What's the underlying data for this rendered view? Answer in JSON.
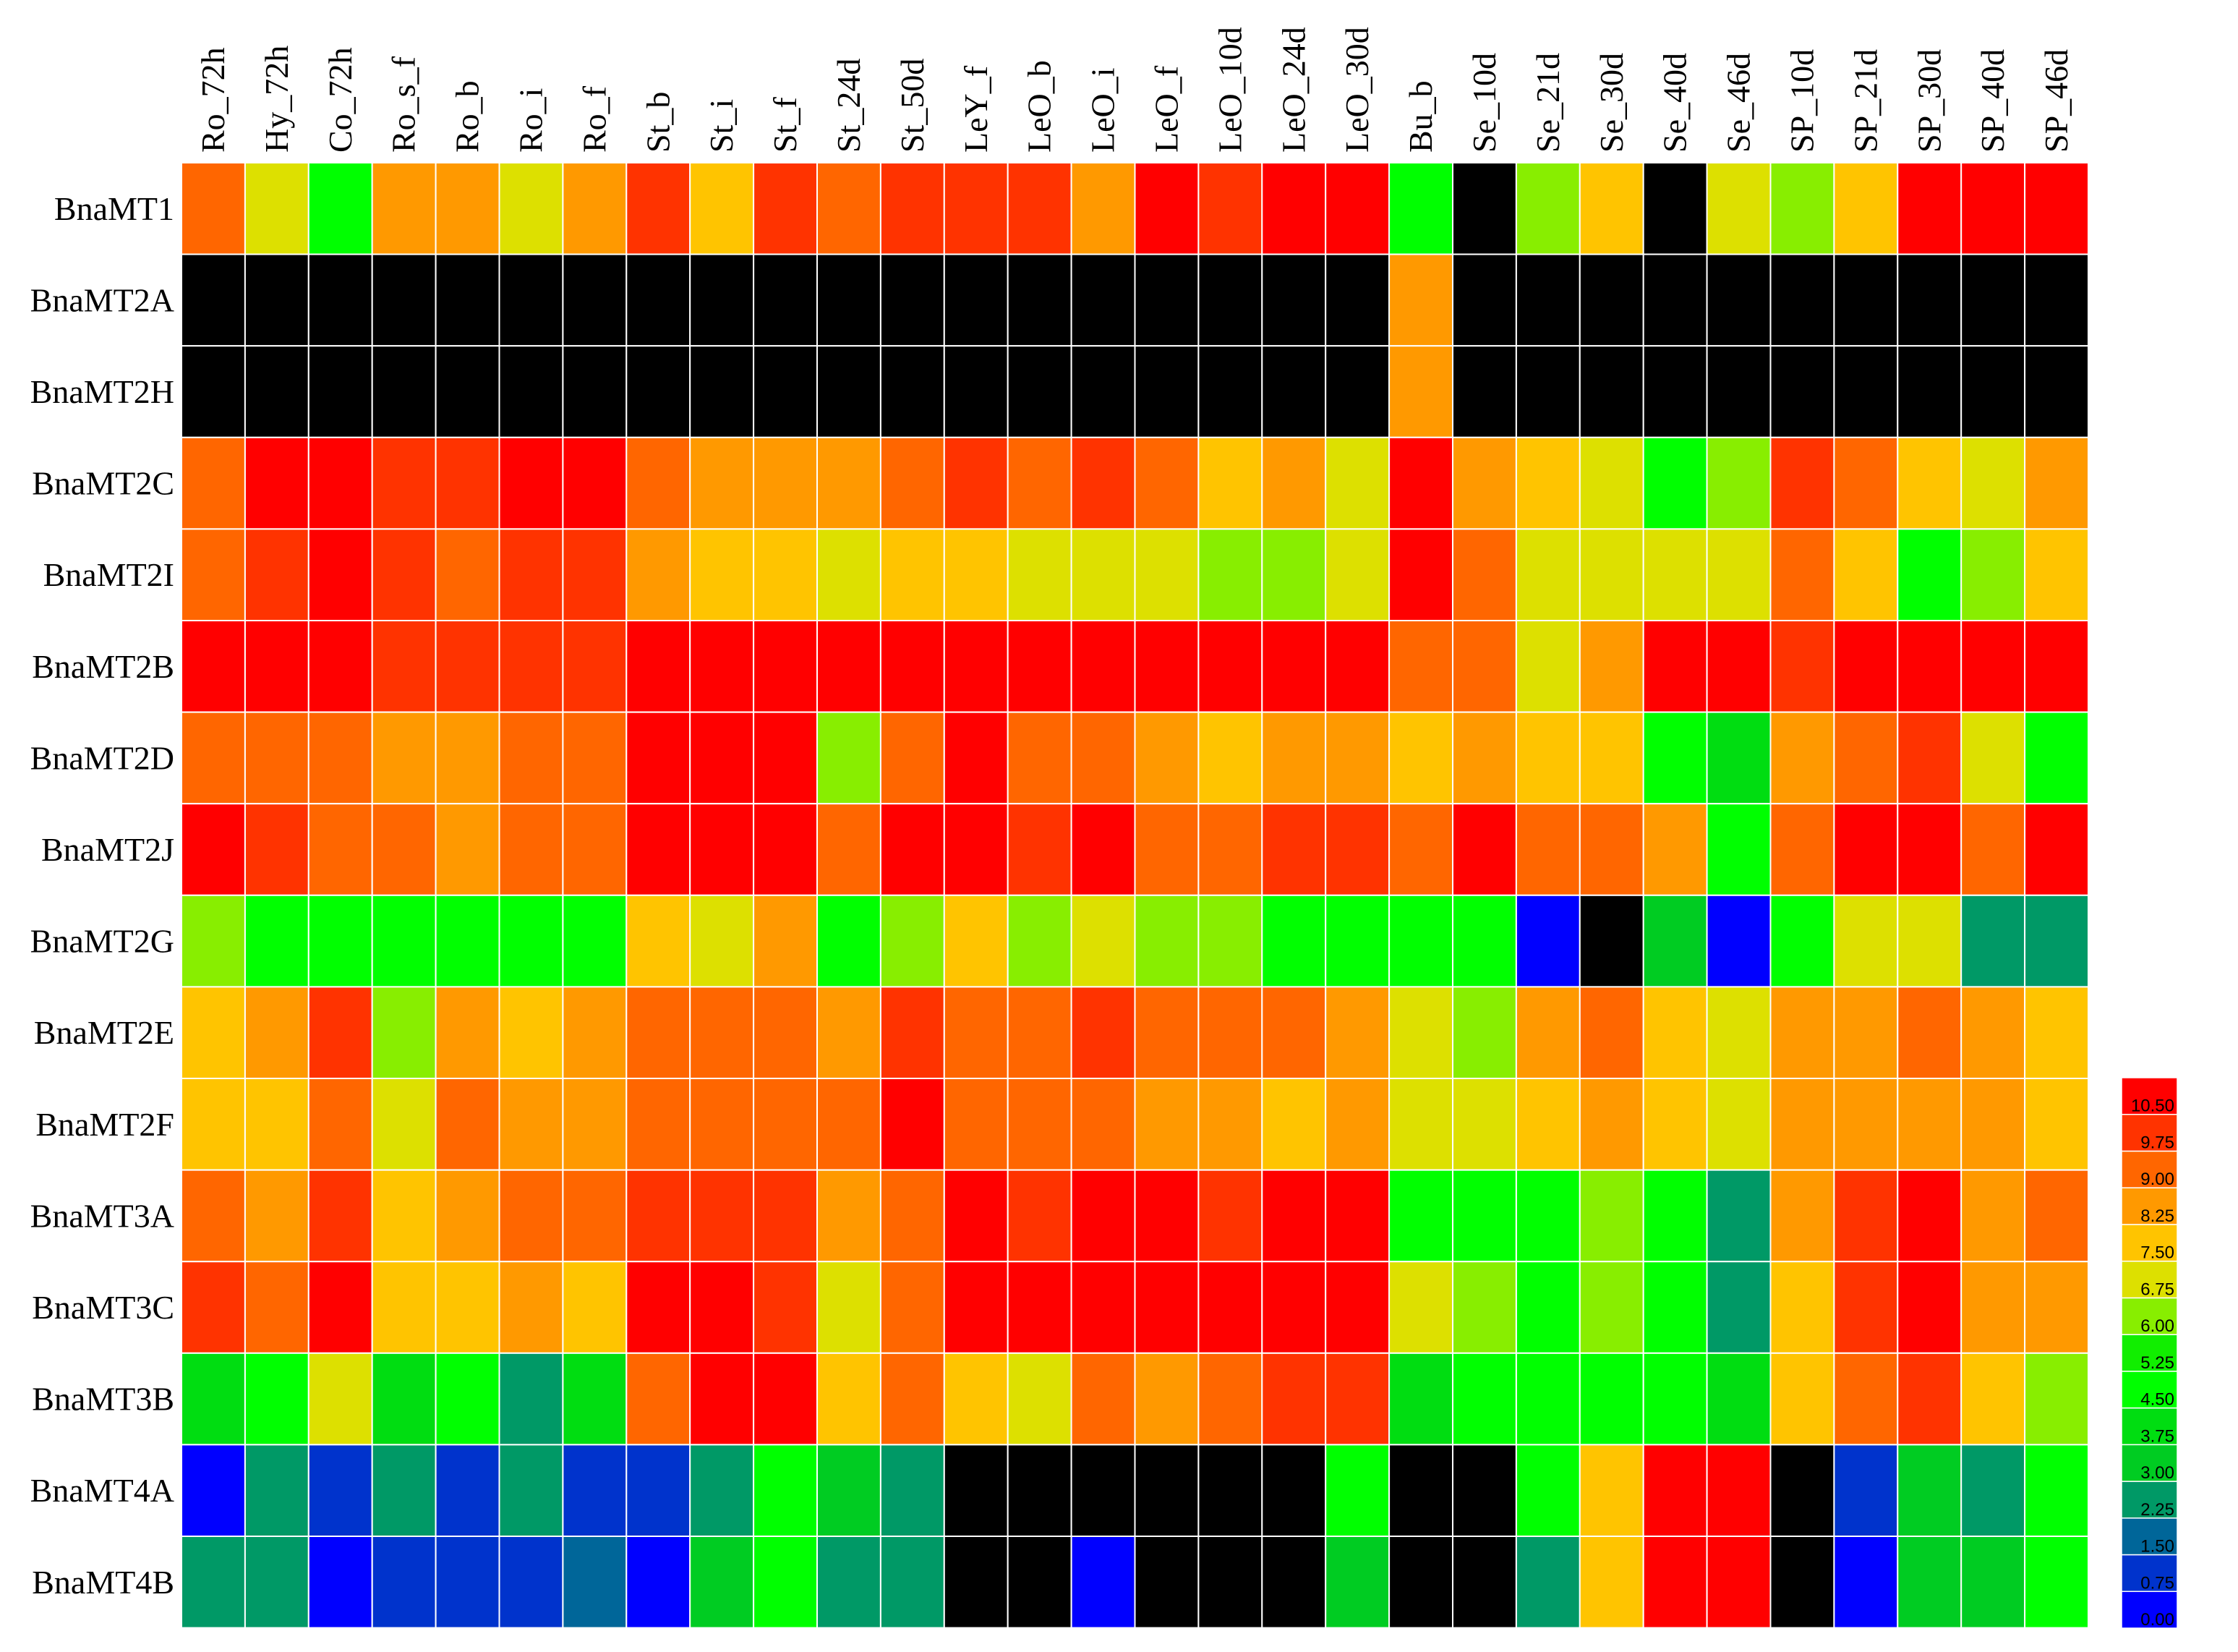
{
  "chart_data": {
    "type": "heatmap",
    "title": "",
    "xlabel": "",
    "ylabel": "",
    "columns": [
      "Ro_72h",
      "Hy_72h",
      "Co_72h",
      "Ro_s_f",
      "Ro_b",
      "Ro_i",
      "Ro_f",
      "St_b",
      "St_i",
      "St_f",
      "St_24d",
      "St_50d",
      "LeY_f",
      "LeO_b",
      "LeO_i",
      "LeO_f",
      "LeO_10d",
      "LeO_24d",
      "LeO_30d",
      "Bu_b",
      "Se_10d",
      "Se_21d",
      "Se_30d",
      "Se_40d",
      "Se_46d",
      "SP_10d",
      "SP_21d",
      "SP_30d",
      "SP_40d",
      "SP_46d"
    ],
    "rows": [
      "BnaMT1",
      "BnaMT2A",
      "BnaMT2H",
      "BnaMT2C",
      "BnaMT2I",
      "BnaMT2B",
      "BnaMT2D",
      "BnaMT2J",
      "BnaMT2G",
      "BnaMT2E",
      "BnaMT2F",
      "BnaMT3A",
      "BnaMT3C",
      "BnaMT3B",
      "BnaMT4A",
      "BnaMT4B"
    ],
    "missing_color": "#000000",
    "values": [
      [
        9.3,
        7.2,
        4.9,
        8.6,
        8.6,
        7.1,
        8.6,
        9.8,
        7.8,
        9.8,
        9.3,
        9.8,
        9.8,
        9.8,
        8.6,
        10.7,
        9.8,
        10.7,
        10.7,
        4.7,
        null,
        6.4,
        7.8,
        null,
        7.1,
        6.4,
        7.8,
        10.7,
        10.7,
        10.7
      ],
      [
        null,
        null,
        null,
        null,
        null,
        null,
        null,
        null,
        null,
        null,
        null,
        null,
        null,
        null,
        null,
        null,
        null,
        null,
        null,
        8.6,
        null,
        null,
        null,
        null,
        null,
        null,
        null,
        null,
        null,
        null
      ],
      [
        null,
        null,
        null,
        null,
        null,
        null,
        null,
        null,
        null,
        null,
        null,
        null,
        null,
        null,
        null,
        null,
        null,
        null,
        null,
        8.6,
        null,
        null,
        null,
        null,
        null,
        null,
        null,
        null,
        null,
        null
      ],
      [
        9.3,
        10.7,
        10.7,
        9.8,
        9.8,
        10.7,
        10.7,
        9.3,
        8.6,
        8.6,
        8.6,
        9.3,
        9.8,
        9.3,
        9.8,
        9.3,
        7.8,
        8.6,
        7.1,
        10.7,
        8.6,
        7.8,
        7.1,
        4.9,
        6.4,
        9.8,
        9.3,
        7.8,
        7.1,
        8.6
      ],
      [
        9.3,
        9.8,
        10.7,
        9.8,
        9.3,
        9.8,
        9.8,
        8.6,
        7.8,
        7.8,
        7.1,
        7.8,
        7.8,
        7.1,
        7.1,
        7.1,
        6.4,
        6.4,
        7.1,
        10.7,
        9.3,
        7.1,
        7.1,
        7.1,
        7.1,
        9.3,
        7.8,
        4.7,
        6.4,
        7.8
      ],
      [
        10.7,
        10.7,
        10.7,
        9.8,
        9.8,
        9.8,
        9.8,
        10.7,
        10.7,
        10.7,
        10.7,
        10.7,
        10.7,
        10.7,
        10.7,
        10.7,
        10.7,
        10.7,
        10.7,
        9.3,
        9.3,
        7.1,
        8.6,
        10.7,
        10.7,
        9.8,
        10.7,
        10.7,
        10.7,
        10.7
      ],
      [
        9.3,
        9.3,
        9.3,
        8.6,
        8.6,
        9.3,
        9.3,
        10.7,
        10.7,
        10.7,
        6.4,
        9.3,
        10.7,
        9.3,
        9.3,
        8.6,
        7.8,
        8.6,
        8.6,
        7.8,
        8.6,
        7.8,
        7.8,
        4.9,
        4.2,
        8.6,
        9.3,
        9.8,
        7.1,
        4.7
      ],
      [
        10.7,
        9.8,
        9.3,
        9.3,
        8.6,
        9.3,
        9.3,
        10.7,
        10.7,
        10.7,
        9.3,
        10.7,
        10.7,
        9.8,
        10.7,
        9.3,
        9.3,
        9.8,
        9.8,
        9.3,
        10.7,
        9.3,
        9.3,
        8.6,
        4.7,
        9.3,
        10.7,
        10.7,
        9.3,
        10.7
      ],
      [
        6.4,
        4.9,
        4.9,
        4.7,
        4.7,
        4.7,
        4.7,
        7.8,
        7.1,
        8.6,
        4.7,
        6.4,
        7.8,
        6.4,
        7.1,
        6.4,
        6.4,
        4.9,
        4.9,
        4.7,
        4.7,
        0.4,
        null,
        3.6,
        0.4,
        4.9,
        7.1,
        7.1,
        2.6,
        2.6
      ],
      [
        7.8,
        8.6,
        9.8,
        6.4,
        8.6,
        7.8,
        8.6,
        9.3,
        9.3,
        9.3,
        8.6,
        9.8,
        9.3,
        9.3,
        9.8,
        9.3,
        9.3,
        9.3,
        8.6,
        7.1,
        6.4,
        8.6,
        9.3,
        7.8,
        7.1,
        8.6,
        8.6,
        9.3,
        8.6,
        7.8
      ],
      [
        7.8,
        7.8,
        9.3,
        7.1,
        9.3,
        8.6,
        8.6,
        9.3,
        9.3,
        9.3,
        9.3,
        10.7,
        9.3,
        9.3,
        9.3,
        8.6,
        8.6,
        7.8,
        8.6,
        7.1,
        7.1,
        7.8,
        8.6,
        7.8,
        7.1,
        8.6,
        8.6,
        8.6,
        8.6,
        7.8
      ],
      [
        9.3,
        8.6,
        9.8,
        7.8,
        8.6,
        9.3,
        9.3,
        9.8,
        9.8,
        9.8,
        8.6,
        9.3,
        10.7,
        9.8,
        10.7,
        10.7,
        9.8,
        10.7,
        10.7,
        4.7,
        4.7,
        4.7,
        6.4,
        4.7,
        2.6,
        8.6,
        9.8,
        10.7,
        8.6,
        9.3
      ],
      [
        9.8,
        9.3,
        10.7,
        7.8,
        7.8,
        8.6,
        7.8,
        10.7,
        10.7,
        9.8,
        7.1,
        9.3,
        10.7,
        10.7,
        10.7,
        10.7,
        10.7,
        10.7,
        10.7,
        7.1,
        6.4,
        4.7,
        6.4,
        4.7,
        2.6,
        7.8,
        9.8,
        10.7,
        8.6,
        8.6
      ],
      [
        4.2,
        4.7,
        7.1,
        4.2,
        4.7,
        2.6,
        4.2,
        9.3,
        10.7,
        10.7,
        7.8,
        9.3,
        7.8,
        7.1,
        9.3,
        8.6,
        9.3,
        9.8,
        9.8,
        4.2,
        4.9,
        4.9,
        4.9,
        4.9,
        4.2,
        7.8,
        9.3,
        9.8,
        7.8,
        6.4
      ],
      [
        0.4,
        2.6,
        1.1,
        2.6,
        1.1,
        2.6,
        1.1,
        1.1,
        2.6,
        4.7,
        3.6,
        2.6,
        null,
        null,
        null,
        null,
        null,
        null,
        4.7,
        null,
        null,
        4.7,
        7.8,
        10.7,
        10.7,
        null,
        1.1,
        3.6,
        2.6,
        4.9
      ],
      [
        2.6,
        2.6,
        0.4,
        1.1,
        1.1,
        1.1,
        1.9,
        0.4,
        3.6,
        4.7,
        2.6,
        2.6,
        null,
        null,
        0.4,
        null,
        null,
        null,
        3.6,
        null,
        null,
        2.6,
        7.8,
        10.7,
        10.7,
        null,
        0.4,
        3.6,
        3.6,
        4.7
      ]
    ],
    "color_scale": {
      "ticks": [
        "0.00",
        "0.75",
        "1.50",
        "2.25",
        "3.00",
        "3.75",
        "4.50",
        "5.25",
        "6.00",
        "6.75",
        "7.50",
        "8.25",
        "9.00",
        "9.75",
        "10.50"
      ],
      "bands": [
        {
          "min": 0.0,
          "max": 0.75,
          "color": "#0000FF"
        },
        {
          "min": 0.75,
          "max": 1.5,
          "color": "#0033CC"
        },
        {
          "min": 1.5,
          "max": 2.25,
          "color": "#006699"
        },
        {
          "min": 2.25,
          "max": 3.0,
          "color": "#009966"
        },
        {
          "min": 3.0,
          "max": 3.75,
          "color": "#00CC22"
        },
        {
          "min": 3.75,
          "max": 4.5,
          "color": "#00DD11"
        },
        {
          "min": 4.5,
          "max": 5.25,
          "color": "#00FF00"
        },
        {
          "min": 5.25,
          "max": 6.0,
          "color": "#11EE00"
        },
        {
          "min": 6.0,
          "max": 6.75,
          "color": "#88EE00"
        },
        {
          "min": 6.75,
          "max": 7.5,
          "color": "#DDE000"
        },
        {
          "min": 7.5,
          "max": 8.25,
          "color": "#FFC400"
        },
        {
          "min": 8.25,
          "max": 9.0,
          "color": "#FF9900"
        },
        {
          "min": 9.0,
          "max": 9.75,
          "color": "#FF6600"
        },
        {
          "min": 9.75,
          "max": 10.5,
          "color": "#FF3300"
        },
        {
          "min": 10.5,
          "max": 11.25,
          "color": "#FF0000"
        }
      ]
    },
    "legend_position": "right-bottom",
    "grid": true
  }
}
